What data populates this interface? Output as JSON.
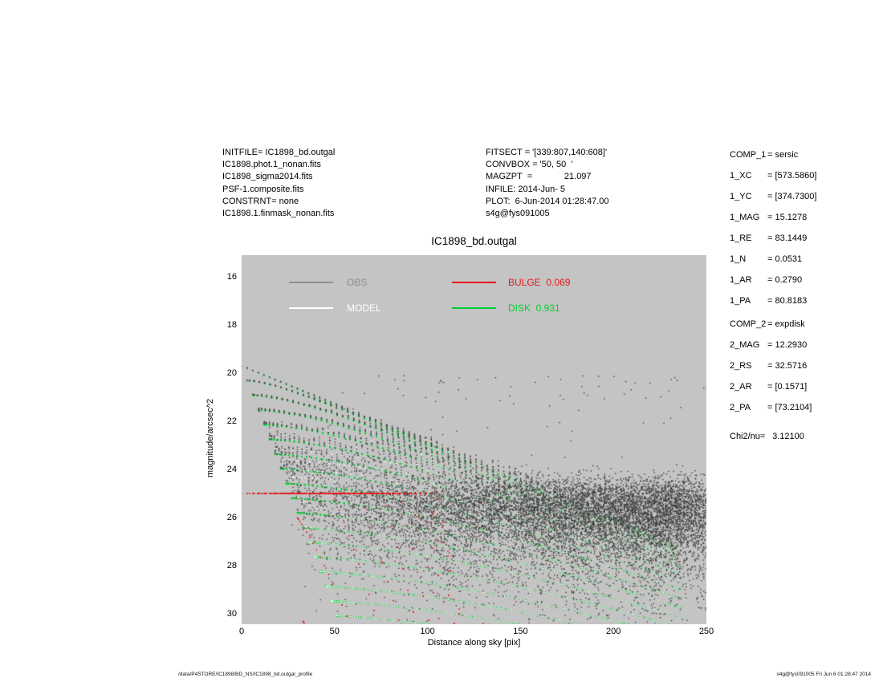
{
  "header": {
    "left_lines": [
      "INITFILE= IC1898_bd.outgal",
      "IC1898.phot.1_nonan.fits",
      "IC1898_sigma2014.fits",
      "PSF-1.composite.fits",
      "CONSTRNT= none",
      "IC1898.1.finmask_nonan.fits"
    ],
    "mid_lines": [
      "FITSECT = '[339:807,140:608]'",
      "CONVBOX = '50, 50  '",
      "MAGZPT  =             21.097",
      "INFILE: 2014-Jun- 5",
      "PLOT:  6-Jun-2014 01:28:47.00",
      "s4g@fys091005"
    ],
    "right_items": [
      {
        "label": "COMP_1",
        "value": "= sersic",
        "gap": 0
      },
      {
        "label": "1_XC",
        "value": "= [573.5860]",
        "gap": 0
      },
      {
        "label": "1_YC",
        "value": "= [374.7300]",
        "gap": 0
      },
      {
        "label": "1_MAG",
        "value": "= 15.1278",
        "gap": 0
      },
      {
        "label": "1_RE",
        "value": "= 83.1449",
        "gap": 0
      },
      {
        "label": "1_N",
        "value": "= 0.0531",
        "gap": 0
      },
      {
        "label": "1_AR",
        "value": "= 0.2790",
        "gap": 0
      },
      {
        "label": "1_PA",
        "value": "= 80.8183",
        "gap": 0
      },
      {
        "label": "COMP_2",
        "value": "= expdisk",
        "gap": 3
      },
      {
        "label": "2_MAG",
        "value": "= 12.2930",
        "gap": 0
      },
      {
        "label": "2_RS",
        "value": "= 32.5716",
        "gap": 0
      },
      {
        "label": "2_AR",
        "value": "= [0.1571]",
        "gap": 0
      },
      {
        "label": "2_PA",
        "value": "= [73.2104]",
        "gap": 0
      },
      {
        "label": "Chi2/nu=",
        "value": "  3.12100",
        "gap": 10
      }
    ]
  },
  "chart_data": {
    "type": "scatter",
    "title": "IC1898_bd.outgal",
    "xlabel": "Distance along sky [pix]",
    "ylabel": "magnitude/arcsec^2",
    "xlim": [
      0,
      250
    ],
    "ylim_top": 15.1,
    "ylim_bottom": 30.43,
    "y_axis_inverted": true,
    "xticks": [
      0,
      50,
      100,
      150,
      200,
      250
    ],
    "yticks": [
      16,
      18,
      20,
      22,
      24,
      26,
      28,
      30
    ],
    "grid": false,
    "background": "#c4c4c4",
    "legend_position": "top-inside",
    "legend": [
      {
        "label": "OBS",
        "color": "#8f8f8f",
        "row": 0,
        "col": 0
      },
      {
        "label": "MODEL",
        "color": "#ffffff",
        "row": 1,
        "col": 0
      },
      {
        "label": "BULGE  0.069",
        "color": "#e8191c",
        "row": 0,
        "col": 1
      },
      {
        "label": "DISK  0.931",
        "color": "#00cf30",
        "row": 1,
        "col": 1
      }
    ],
    "series_colors": {
      "obs": "#3f3f3f",
      "model": "#ffffff",
      "disk": "#00cf30",
      "bulge": "#e8191c"
    },
    "series_notes": {
      "obs": "per-pixel observed surface brightness; follows model wedge at bright end, flattens into sky-noise band around mag 24.3-30 at large radius with sparse bright outliers",
      "model": "bulge+disk model per pixel, white points inside wedge",
      "disk": "exponential disk wedge: apex mag 19.7 at r=0; major-axis edge reaches ~27.7 mag at r=250; minor-axis edge reaches mag 30 near r=50",
      "bulge": "flat sersic (n~0.05) line at mag ~25.0 from r=0, dense to r~55, fading tail to r~112, cliff scatter dropping to mag 30 near r~30-55"
    },
    "model_params": {
      "seed": 1337,
      "grid_step": 3,
      "region_half": 234,
      "sky_mu_sigma": 25.5,
      "outlier_fraction": 0.003,
      "disk": {
        "mu0": 19.7,
        "rs": 34.0,
        "q": 0.157
      },
      "bulge": {
        "mu": 25.0,
        "r_flat": 105,
        "q": 0.279,
        "cliff": 0.4
      }
    }
  },
  "footer": {
    "left": "/data/P4STORE/IC1898/BD_NS/IC1898_bd.outgal_profile",
    "right": "s4g@fys091005  Fri Jun  6 01:28:47 2014"
  }
}
